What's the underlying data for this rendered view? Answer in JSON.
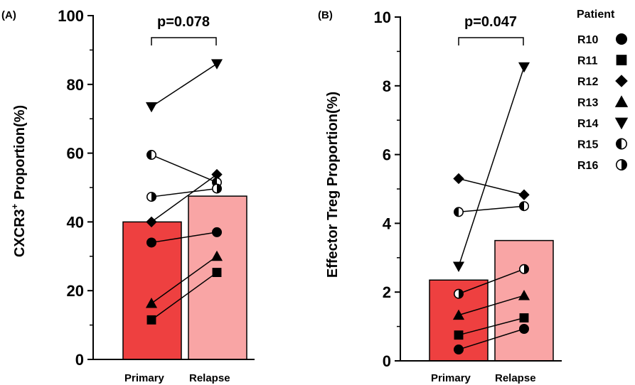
{
  "legend": {
    "title": "Patient",
    "entries": [
      {
        "label": "R10",
        "marker": "circle"
      },
      {
        "label": "R11",
        "marker": "square"
      },
      {
        "label": "R12",
        "marker": "diamond"
      },
      {
        "label": "R13",
        "marker": "triangle-up"
      },
      {
        "label": "R14",
        "marker": "triangle-down"
      },
      {
        "label": "R15",
        "marker": "half-circle-left"
      },
      {
        "label": "R16",
        "marker": "half-circle-right"
      }
    ]
  },
  "colors": {
    "primary_bar": "#ee4040",
    "relapse_bar": "#f9a5a5",
    "marker": "#000000"
  },
  "chart_data": [
    {
      "type": "bar",
      "panel": "(A)",
      "categories": [
        "Primary",
        "Relapse"
      ],
      "values": [
        40,
        47.5
      ],
      "ylabel_main": "CXCR3",
      "ylabel_sup": "+",
      "ylabel_rest": " Proportion(%)",
      "ylim": [
        0,
        100
      ],
      "yticks": [
        0,
        20,
        40,
        60,
        80,
        100
      ],
      "annotation": "p=0.078",
      "paired_points": [
        {
          "patient": "R10",
          "values": [
            34,
            37
          ]
        },
        {
          "patient": "R11",
          "values": [
            11.5,
            25.3
          ]
        },
        {
          "patient": "R12",
          "values": [
            40,
            53.8
          ]
        },
        {
          "patient": "R13",
          "values": [
            16.3,
            30
          ]
        },
        {
          "patient": "R14",
          "values": [
            73.5,
            86
          ]
        },
        {
          "patient": "R15",
          "values": [
            59.5,
            51.5
          ]
        },
        {
          "patient": "R16",
          "values": [
            47.3,
            49.7
          ]
        }
      ]
    },
    {
      "type": "bar",
      "panel": "(B)",
      "categories": [
        "Primary",
        "Relapse"
      ],
      "values": [
        2.35,
        3.5
      ],
      "ylabel": "Effector Treg Proportion(%)",
      "ylim": [
        0,
        10
      ],
      "yticks": [
        0,
        2,
        4,
        6,
        8,
        10
      ],
      "annotation": "p=0.047",
      "paired_points": [
        {
          "patient": "R10",
          "values": [
            0.33,
            0.93
          ]
        },
        {
          "patient": "R11",
          "values": [
            0.75,
            1.25
          ]
        },
        {
          "patient": "R12",
          "values": [
            5.3,
            4.83
          ]
        },
        {
          "patient": "R13",
          "values": [
            1.33,
            1.9
          ]
        },
        {
          "patient": "R14",
          "values": [
            2.75,
            8.55
          ]
        },
        {
          "patient": "R15",
          "values": [
            4.33,
            4.5
          ]
        },
        {
          "patient": "R16",
          "values": [
            1.95,
            2.67
          ]
        }
      ]
    }
  ]
}
